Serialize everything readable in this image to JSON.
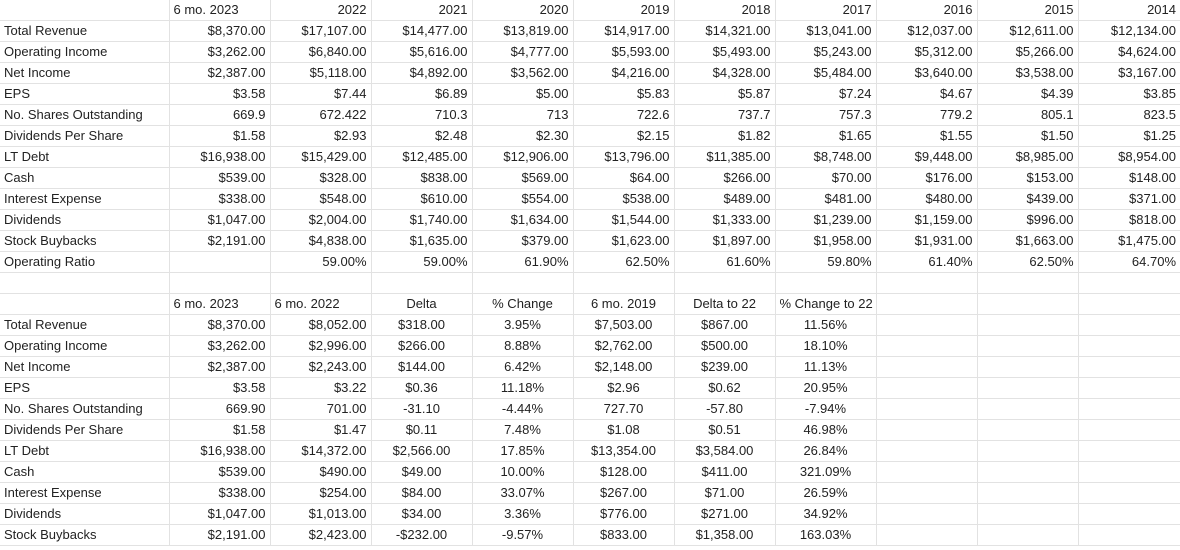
{
  "table1": {
    "headers": [
      "",
      "6 mo. 2023",
      "2022",
      "2021",
      "2020",
      "2019",
      "2018",
      "2017",
      "2016",
      "2015",
      "2014"
    ],
    "rows": [
      [
        "Total Revenue",
        "$8,370.00",
        "$17,107.00",
        "$14,477.00",
        "$13,819.00",
        "$14,917.00",
        "$14,321.00",
        "$13,041.00",
        "$12,037.00",
        "$12,611.00",
        "$12,134.00"
      ],
      [
        "Operating Income",
        "$3,262.00",
        "$6,840.00",
        "$5,616.00",
        "$4,777.00",
        "$5,593.00",
        "$5,493.00",
        "$5,243.00",
        "$5,312.00",
        "$5,266.00",
        "$4,624.00"
      ],
      [
        "Net Income",
        "$2,387.00",
        "$5,118.00",
        "$4,892.00",
        "$3,562.00",
        "$4,216.00",
        "$4,328.00",
        "$5,484.00",
        "$3,640.00",
        "$3,538.00",
        "$3,167.00"
      ],
      [
        "EPS",
        "$3.58",
        "$7.44",
        "$6.89",
        "$5.00",
        "$5.83",
        "$5.87",
        "$7.24",
        "$4.67",
        "$4.39",
        "$3.85"
      ],
      [
        "No. Shares Outstanding",
        "669.9",
        "672.422",
        "710.3",
        "713",
        "722.6",
        "737.7",
        "757.3",
        "779.2",
        "805.1",
        "823.5"
      ],
      [
        "Dividends Per Share",
        "$1.58",
        "$2.93",
        "$2.48",
        "$2.30",
        "$2.15",
        "$1.82",
        "$1.65",
        "$1.55",
        "$1.50",
        "$1.25"
      ],
      [
        "LT Debt",
        "$16,938.00",
        "$15,429.00",
        "$12,485.00",
        "$12,906.00",
        "$13,796.00",
        "$11,385.00",
        "$8,748.00",
        "$9,448.00",
        "$8,985.00",
        "$8,954.00"
      ],
      [
        "Cash",
        "$539.00",
        "$328.00",
        "$838.00",
        "$569.00",
        "$64.00",
        "$266.00",
        "$70.00",
        "$176.00",
        "$153.00",
        "$148.00"
      ],
      [
        "Interest Expense",
        "$338.00",
        "$548.00",
        "$610.00",
        "$554.00",
        "$538.00",
        "$489.00",
        "$481.00",
        "$480.00",
        "$439.00",
        "$371.00"
      ],
      [
        "Dividends",
        "$1,047.00",
        "$2,004.00",
        "$1,740.00",
        "$1,634.00",
        "$1,544.00",
        "$1,333.00",
        "$1,239.00",
        "$1,159.00",
        "$996.00",
        "$818.00"
      ],
      [
        "Stock Buybacks",
        "$2,191.00",
        "$4,838.00",
        "$1,635.00",
        "$379.00",
        "$1,623.00",
        "$1,897.00",
        "$1,958.00",
        "$1,931.00",
        "$1,663.00",
        "$1,475.00"
      ],
      [
        "Operating Ratio",
        "",
        "59.00%",
        "59.00%",
        "61.90%",
        "62.50%",
        "61.60%",
        "59.80%",
        "61.40%",
        "62.50%",
        "64.70%"
      ]
    ]
  },
  "table2": {
    "headers": [
      "",
      "6 mo. 2023",
      "6 mo. 2022",
      "Delta",
      "% Change",
      "6 mo. 2019",
      "Delta to 22",
      "% Change to 22",
      "",
      "",
      ""
    ],
    "rows": [
      [
        "Total Revenue",
        "$8,370.00",
        "$8,052.00",
        "$318.00",
        "3.95%",
        "$7,503.00",
        "$867.00",
        "11.56%",
        "",
        "",
        ""
      ],
      [
        "Operating Income",
        "$3,262.00",
        "$2,996.00",
        "$266.00",
        "8.88%",
        "$2,762.00",
        "$500.00",
        "18.10%",
        "",
        "",
        ""
      ],
      [
        "Net Income",
        "$2,387.00",
        "$2,243.00",
        "$144.00",
        "6.42%",
        "$2,148.00",
        "$239.00",
        "11.13%",
        "",
        "",
        ""
      ],
      [
        "EPS",
        "$3.58",
        "$3.22",
        "$0.36",
        "11.18%",
        "$2.96",
        "$0.62",
        "20.95%",
        "",
        "",
        ""
      ],
      [
        "No. Shares Outstanding",
        "669.90",
        "701.00",
        "-31.10",
        "-4.44%",
        "727.70",
        "-57.80",
        "-7.94%",
        "",
        "",
        ""
      ],
      [
        "Dividends Per Share",
        "$1.58",
        "$1.47",
        "$0.11",
        "7.48%",
        "$1.08",
        "$0.51",
        "46.98%",
        "",
        "",
        ""
      ],
      [
        "LT Debt",
        "$16,938.00",
        "$14,372.00",
        "$2,566.00",
        "17.85%",
        "$13,354.00",
        "$3,584.00",
        "26.84%",
        "",
        "",
        ""
      ],
      [
        "Cash",
        "$539.00",
        "$490.00",
        "$49.00",
        "10.00%",
        "$128.00",
        "$411.00",
        "321.09%",
        "",
        "",
        ""
      ],
      [
        "Interest Expense",
        "$338.00",
        "$254.00",
        "$84.00",
        "33.07%",
        "$267.00",
        "$71.00",
        "26.59%",
        "",
        "",
        ""
      ],
      [
        "Dividends",
        "$1,047.00",
        "$1,013.00",
        "$34.00",
        "3.36%",
        "$776.00",
        "$271.00",
        "34.92%",
        "",
        "",
        ""
      ],
      [
        "Stock Buybacks",
        "$2,191.00",
        "$2,423.00",
        "-$232.00",
        "-9.57%",
        "$833.00",
        "$1,358.00",
        "163.03%",
        "",
        "",
        ""
      ]
    ]
  }
}
